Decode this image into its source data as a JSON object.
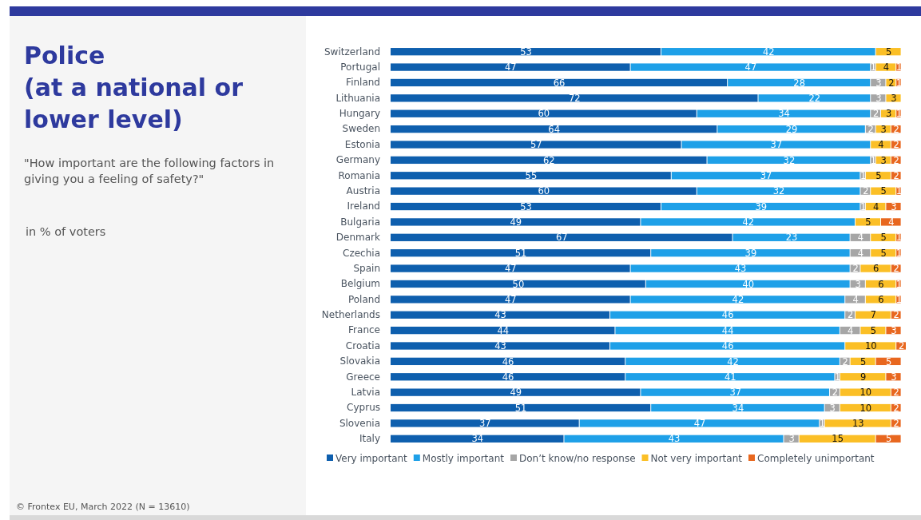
{
  "chart_data": {
    "type": "bar",
    "orientation": "horizontal",
    "stacked": true,
    "data_labels": true,
    "legend": "bottom",
    "tick_labels": "y",
    "xlim": [
      0,
      101
    ],
    "title": "Police\n(at a national or\nlower level)",
    "subtitle": "\"How important are the following factors in giving you a feeling of safety?\"",
    "annotations": [
      "in % of voters",
      "© Frontex EU, March 2022 (N = 13610)"
    ],
    "categories": [
      "Switzerland",
      "Portugal",
      "Finland",
      "Lithuania",
      "Hungary",
      "Sweden",
      "Estonia",
      "Germany",
      "Romania",
      "Austria",
      "Ireland",
      "Bulgaria",
      "Denmark",
      "Czechia",
      "Spain",
      "Belgium",
      "Poland",
      "Netherlands",
      "France",
      "Croatia",
      "Slovakia",
      "Greece",
      "Latvia",
      "Cyprus",
      "Slovenia",
      "Italy"
    ],
    "series": [
      {
        "name": "Very important",
        "color": "#0e5fae",
        "values": [
          53,
          47,
          66,
          72,
          60,
          64,
          57,
          62,
          55,
          60,
          53,
          49,
          67,
          51,
          47,
          50,
          47,
          43,
          44,
          43,
          46,
          46,
          49,
          51,
          37,
          34
        ]
      },
      {
        "name": "Mostly important",
        "color": "#1ea0e8",
        "values": [
          42,
          47,
          28,
          22,
          34,
          29,
          37,
          32,
          37,
          32,
          39,
          42,
          23,
          39,
          43,
          40,
          42,
          46,
          44,
          46,
          42,
          41,
          37,
          34,
          47,
          43
        ]
      },
      {
        "name": "Don’t know/no response",
        "color": "#a6a6a6",
        "values": [
          null,
          1,
          3,
          3,
          2,
          2,
          null,
          1,
          1,
          2,
          1,
          null,
          4,
          4,
          2,
          3,
          4,
          2,
          4,
          null,
          2,
          1,
          2,
          3,
          1,
          3
        ]
      },
      {
        "name": "Not very important",
        "color": "#fbbf26",
        "values": [
          5,
          4,
          2,
          3,
          3,
          3,
          4,
          3,
          5,
          5,
          4,
          5,
          5,
          5,
          6,
          6,
          6,
          7,
          5,
          10,
          5,
          9,
          10,
          10,
          13,
          15
        ]
      },
      {
        "name": "Completely unimportant",
        "color": "#e8671f",
        "values": [
          null,
          1,
          1,
          null,
          1,
          2,
          2,
          2,
          2,
          1,
          3,
          4,
          1,
          1,
          2,
          1,
          1,
          2,
          3,
          2,
          5,
          3,
          2,
          2,
          2,
          5
        ]
      }
    ]
  }
}
